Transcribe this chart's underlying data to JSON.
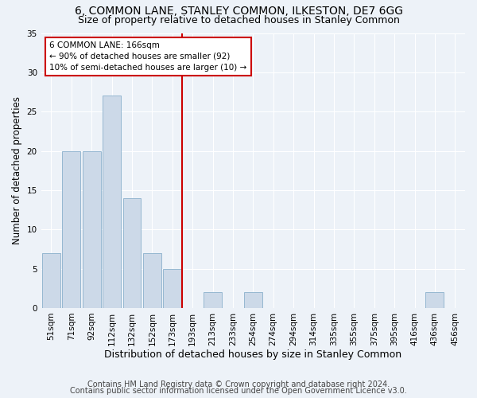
{
  "title": "6, COMMON LANE, STANLEY COMMON, ILKESTON, DE7 6GG",
  "subtitle": "Size of property relative to detached houses in Stanley Common",
  "xlabel": "Distribution of detached houses by size in Stanley Common",
  "ylabel": "Number of detached properties",
  "footnote1": "Contains HM Land Registry data © Crown copyright and database right 2024.",
  "footnote2": "Contains public sector information licensed under the Open Government Licence v3.0.",
  "bin_labels": [
    "51sqm",
    "71sqm",
    "92sqm",
    "112sqm",
    "132sqm",
    "152sqm",
    "173sqm",
    "193sqm",
    "213sqm",
    "233sqm",
    "254sqm",
    "274sqm",
    "294sqm",
    "314sqm",
    "335sqm",
    "355sqm",
    "375sqm",
    "395sqm",
    "416sqm",
    "436sqm",
    "456sqm"
  ],
  "bar_values": [
    7,
    20,
    20,
    27,
    14,
    7,
    5,
    0,
    2,
    0,
    2,
    0,
    0,
    0,
    0,
    0,
    0,
    0,
    0,
    2,
    0
  ],
  "bar_color": "#ccd9e8",
  "bar_edgecolor": "#8ab0cc",
  "vline_x": 6.5,
  "vline_color": "#cc0000",
  "annotation_box_text": "6 COMMON LANE: 166sqm\n← 90% of detached houses are smaller (92)\n10% of semi-detached houses are larger (10) →",
  "annotation_box_color": "#cc0000",
  "annotation_bg": "#ffffff",
  "ylim": [
    0,
    35
  ],
  "yticks": [
    0,
    5,
    10,
    15,
    20,
    25,
    30,
    35
  ],
  "background_color": "#edf2f8",
  "plot_bg_color": "#edf2f8",
  "grid_color": "#ffffff",
  "title_fontsize": 10,
  "subtitle_fontsize": 9,
  "xlabel_fontsize": 9,
  "ylabel_fontsize": 8.5,
  "tick_fontsize": 7.5,
  "annotation_fontsize": 7.5,
  "footnote_fontsize": 7
}
